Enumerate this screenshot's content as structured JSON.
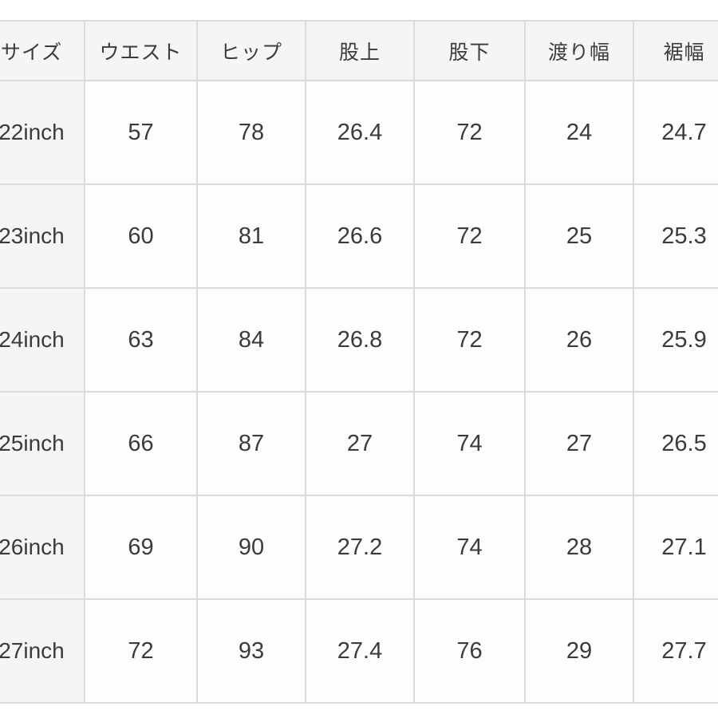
{
  "chart_data": {
    "type": "table",
    "columns": [
      "サイズ",
      "ウエスト",
      "ヒップ",
      "股上",
      "股下",
      "渡り幅",
      "裾幅"
    ],
    "rows": [
      [
        "22inch",
        "57",
        "78",
        "26.4",
        "72",
        "24",
        "24.7"
      ],
      [
        "23inch",
        "60",
        "81",
        "26.6",
        "72",
        "25",
        "25.3"
      ],
      [
        "24inch",
        "63",
        "84",
        "26.8",
        "72",
        "26",
        "25.9"
      ],
      [
        "25inch",
        "66",
        "87",
        "27",
        "74",
        "27",
        "26.5"
      ],
      [
        "26inch",
        "69",
        "90",
        "27.2",
        "74",
        "28",
        "27.1"
      ],
      [
        "27inch",
        "72",
        "93",
        "27.4",
        "76",
        "29",
        "27.7"
      ]
    ],
    "layout": {
      "header_bg": "#f5f5f3",
      "cell_bg": "#fdfdfc",
      "border_color": "#dbdbd8",
      "text_color": "#3b3b3b",
      "first_column_is_header": true,
      "cropped_left_and_right": true
    }
  }
}
